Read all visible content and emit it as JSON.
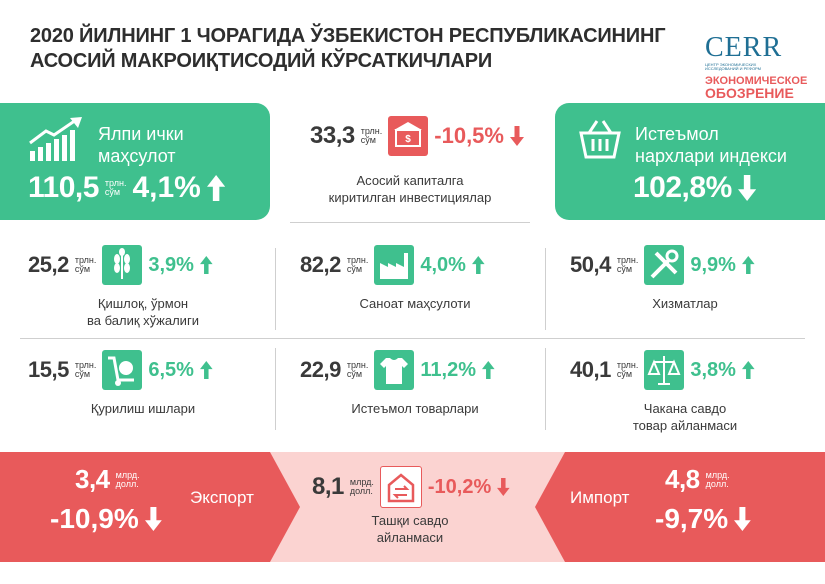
{
  "header": {
    "title": [
      "2020 ЙИЛНИНГ 1 ЧОРАГИДА ЎЗБЕКИСТОН РЕСПУБЛИКАСИНИНГ",
      "АСОСИЙ МАКРОИҚТИСОДИЙ КЎРСАТКИЧЛАРИ"
    ]
  },
  "logo": {
    "name": "CERR",
    "tagline": [
      "ЦЕНТР ЭКОНОМИЧЕСКИХ",
      "ИССЛЕДОВАНИЙ И РЕФОРМ"
    ],
    "sub": [
      "ЭКОНОМИЧЕСКОЕ",
      "ОБОЗРЕНИЕ"
    ]
  },
  "indicators": [
    {
      "label": [
        "Ялпи ички",
        "маҳсулот"
      ],
      "value": "110,5",
      "unit": [
        "трлн.",
        "сўм"
      ],
      "change": "4,1%",
      "direction": "up"
    },
    {
      "label": [
        "Асосий капиталга",
        "киритилган инвестициялар"
      ],
      "value": "33,3",
      "unit": [
        "трлн.",
        "сўм"
      ],
      "change": "-10,5%",
      "direction": "down"
    },
    {
      "label": [
        "Истеъмол",
        "нархлари индекси"
      ],
      "value": "102,8%",
      "direction": "down"
    },
    {
      "label": [
        "Қишлоқ, ўрмон",
        "ва балиқ хўжалиги"
      ],
      "value": "25,2",
      "unit": [
        "трлн.",
        "сўм"
      ],
      "change": "3,9%",
      "direction": "up"
    },
    {
      "label": [
        "Саноат маҳсулоти"
      ],
      "value": "82,2",
      "unit": [
        "трлн.",
        "сўм"
      ],
      "change": "4,0%",
      "direction": "up"
    },
    {
      "label": [
        "Хизматлар"
      ],
      "value": "50,4",
      "unit": [
        "трлн.",
        "сўм"
      ],
      "change": "9,9%",
      "direction": "up"
    },
    {
      "label": [
        "Қурилиш ишлари"
      ],
      "value": "15,5",
      "unit": [
        "трлн.",
        "сўм"
      ],
      "change": "6,5%",
      "direction": "up"
    },
    {
      "label": [
        "Истеъмол товарлари"
      ],
      "value": "22,9",
      "unit": [
        "трлн.",
        "сўм"
      ],
      "change": "11,2%",
      "direction": "up"
    },
    {
      "label": [
        "Чакана савдо",
        "товар айланмаси"
      ],
      "value": "40,1",
      "unit": [
        "трлн.",
        "сўм"
      ],
      "change": "3,8%",
      "direction": "up"
    },
    {
      "label": [
        "Экспорт"
      ],
      "value": "3,4",
      "unit": [
        "млрд.",
        "долл."
      ],
      "change": "-10,9%",
      "direction": "down"
    },
    {
      "label": [
        "Ташқи савдо",
        "айланмаси"
      ],
      "value": "8,1",
      "unit": [
        "млрд.",
        "долл."
      ],
      "change": "-10,2%",
      "direction": "down"
    },
    {
      "label": [
        "Импорт"
      ],
      "value": "4,8",
      "unit": [
        "млрд.",
        "долл."
      ],
      "change": "-9,7%",
      "direction": "down"
    }
  ]
}
